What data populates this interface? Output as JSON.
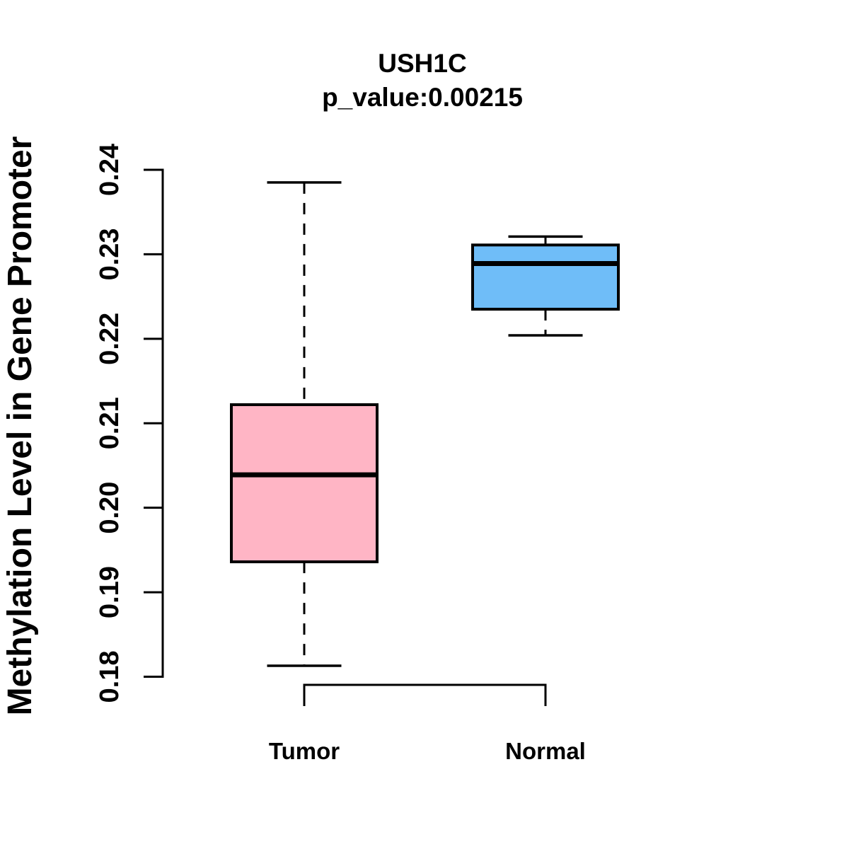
{
  "header": {
    "title": "USH1C",
    "subtitle": "p_value:0.00215"
  },
  "chart_data": {
    "type": "boxplot",
    "title": "USH1C",
    "subtitle": "p_value:0.00215",
    "ylabel": "Methylation Level in Gene Promoter",
    "xlabel": "",
    "categories": [
      "Tumor",
      "Normal"
    ],
    "ylim": [
      0.18,
      0.24
    ],
    "yticks": [
      0.18,
      0.19,
      0.2,
      0.21,
      0.22,
      0.23,
      0.24
    ],
    "ytick_labels": [
      "0.18",
      "0.19",
      "0.20",
      "0.21",
      "0.22",
      "0.23",
      "0.24"
    ],
    "grid": false,
    "legend": "none",
    "series": [
      {
        "name": "Tumor",
        "color": "#FFB5C5",
        "lower_whisker": 0.1813,
        "q1": 0.1936,
        "median": 0.2039,
        "q3": 0.2122,
        "upper_whisker": 0.2385
      },
      {
        "name": "Normal",
        "color": "#6FBDF8",
        "lower_whisker": 0.2204,
        "q1": 0.2235,
        "median": 0.2289,
        "q3": 0.2311,
        "upper_whisker": 0.2321
      }
    ],
    "colors": {
      "box_border": "#000000",
      "median": "#000000",
      "whisker": "#000000",
      "axis": "#000000",
      "text": "#000000",
      "background": "#FFFFFF"
    }
  }
}
